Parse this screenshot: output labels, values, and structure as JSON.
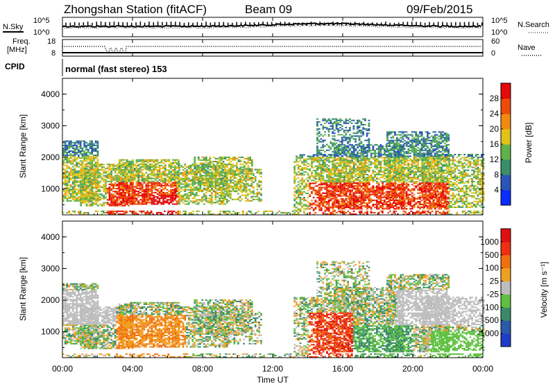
{
  "header": {
    "station": "Zhongshan Station (fitACF)",
    "beam": "Beam 09",
    "date": "09/Feb/2015"
  },
  "noise_panel": {
    "left_label": "N.Sky",
    "right_label": "N.Search",
    "left_ticks": [
      "10^5",
      "10^0"
    ],
    "right_ticks": [
      "10^5",
      "10^0"
    ]
  },
  "freq_panel": {
    "left_label_line1": "Freq.",
    "left_label_line2": "[MHz]",
    "left_ticks": [
      "18",
      "8"
    ],
    "right_label": "Nave",
    "right_ticks": [
      "60",
      "0"
    ]
  },
  "cpid": {
    "label": "CPID",
    "text": "normal (fast stereo) 153"
  },
  "chart_data": [
    {
      "type": "heatmap",
      "name": "power",
      "ylabel": "Slant Range [km]",
      "yticks": [
        "1000",
        "2000",
        "3000",
        "4000"
      ],
      "ylim": [
        180,
        4500
      ],
      "colorbar_label": "Power [dB]",
      "colorbar_ticks": [
        "4",
        "8",
        "12",
        "16",
        "20",
        "24",
        "28"
      ],
      "colorbar_colors": [
        "#0a2cff",
        "#2a56b8",
        "#3a8e6a",
        "#5fb24a",
        "#e2c21a",
        "#f08a10",
        "#ee4a0a",
        "#e40a0a"
      ]
    },
    {
      "type": "heatmap",
      "name": "velocity",
      "ylabel": "Slant Range [km]",
      "yticks": [
        "1000",
        "2000",
        "3000",
        "4000"
      ],
      "ylim": [
        180,
        4500
      ],
      "colorbar_label": "Velocity [m s⁻¹]",
      "colorbar_ticks": [
        "1000",
        "500",
        "100",
        "25",
        "-25",
        "-100",
        "-500",
        "-1000"
      ],
      "colorbar_colors": [
        "#1e3cc8",
        "#2a5aa8",
        "#3a8a6a",
        "#5ec040",
        "#bdbdbd",
        "#f0a020",
        "#f07010",
        "#ef3010",
        "#e01010"
      ]
    }
  ],
  "time_axis": {
    "label": "Time UT",
    "ticks": [
      "00:00",
      "04:00",
      "08:00",
      "12:00",
      "16:00",
      "20:00",
      "00:00"
    ]
  }
}
